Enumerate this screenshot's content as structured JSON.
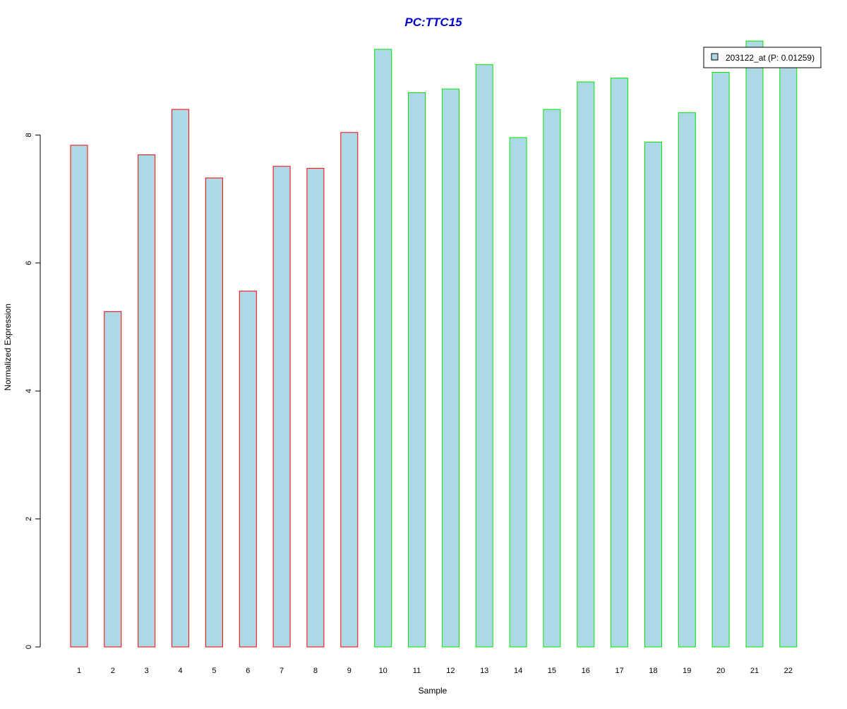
{
  "chart_data": {
    "type": "bar",
    "title": "PC:TTC15",
    "xlabel": "Sample",
    "ylabel": "Normalized Expression",
    "categories": [
      "1",
      "2",
      "3",
      "4",
      "5",
      "6",
      "7",
      "8",
      "9",
      "10",
      "11",
      "12",
      "13",
      "14",
      "15",
      "16",
      "17",
      "18",
      "19",
      "20",
      "21",
      "22"
    ],
    "series": [
      {
        "name": "203122_at (P: 0.01259)",
        "values": [
          7.84,
          5.24,
          7.69,
          8.4,
          7.33,
          5.56,
          7.51,
          7.48,
          8.04,
          9.34,
          8.66,
          8.72,
          9.1,
          7.96,
          8.4,
          8.83,
          8.89,
          7.89,
          8.35,
          8.98,
          9.47,
          9.21
        ]
      }
    ],
    "group_colors": [
      "#ff0000",
      "#ff0000",
      "#ff0000",
      "#ff0000",
      "#ff0000",
      "#ff0000",
      "#ff0000",
      "#ff0000",
      "#ff0000",
      "#00e600",
      "#00e600",
      "#00e600",
      "#00e600",
      "#00e600",
      "#00e600",
      "#00e600",
      "#00e600",
      "#00e600",
      "#00e600",
      "#00e600",
      "#00e600",
      "#00e600"
    ],
    "bar_fill": "#add8e6",
    "title_color": "#0000cc",
    "yticks": [
      0,
      2,
      4,
      6,
      8
    ],
    "ylim": [
      0,
      9.9
    ],
    "grid": false,
    "legend_position": "top-right"
  }
}
